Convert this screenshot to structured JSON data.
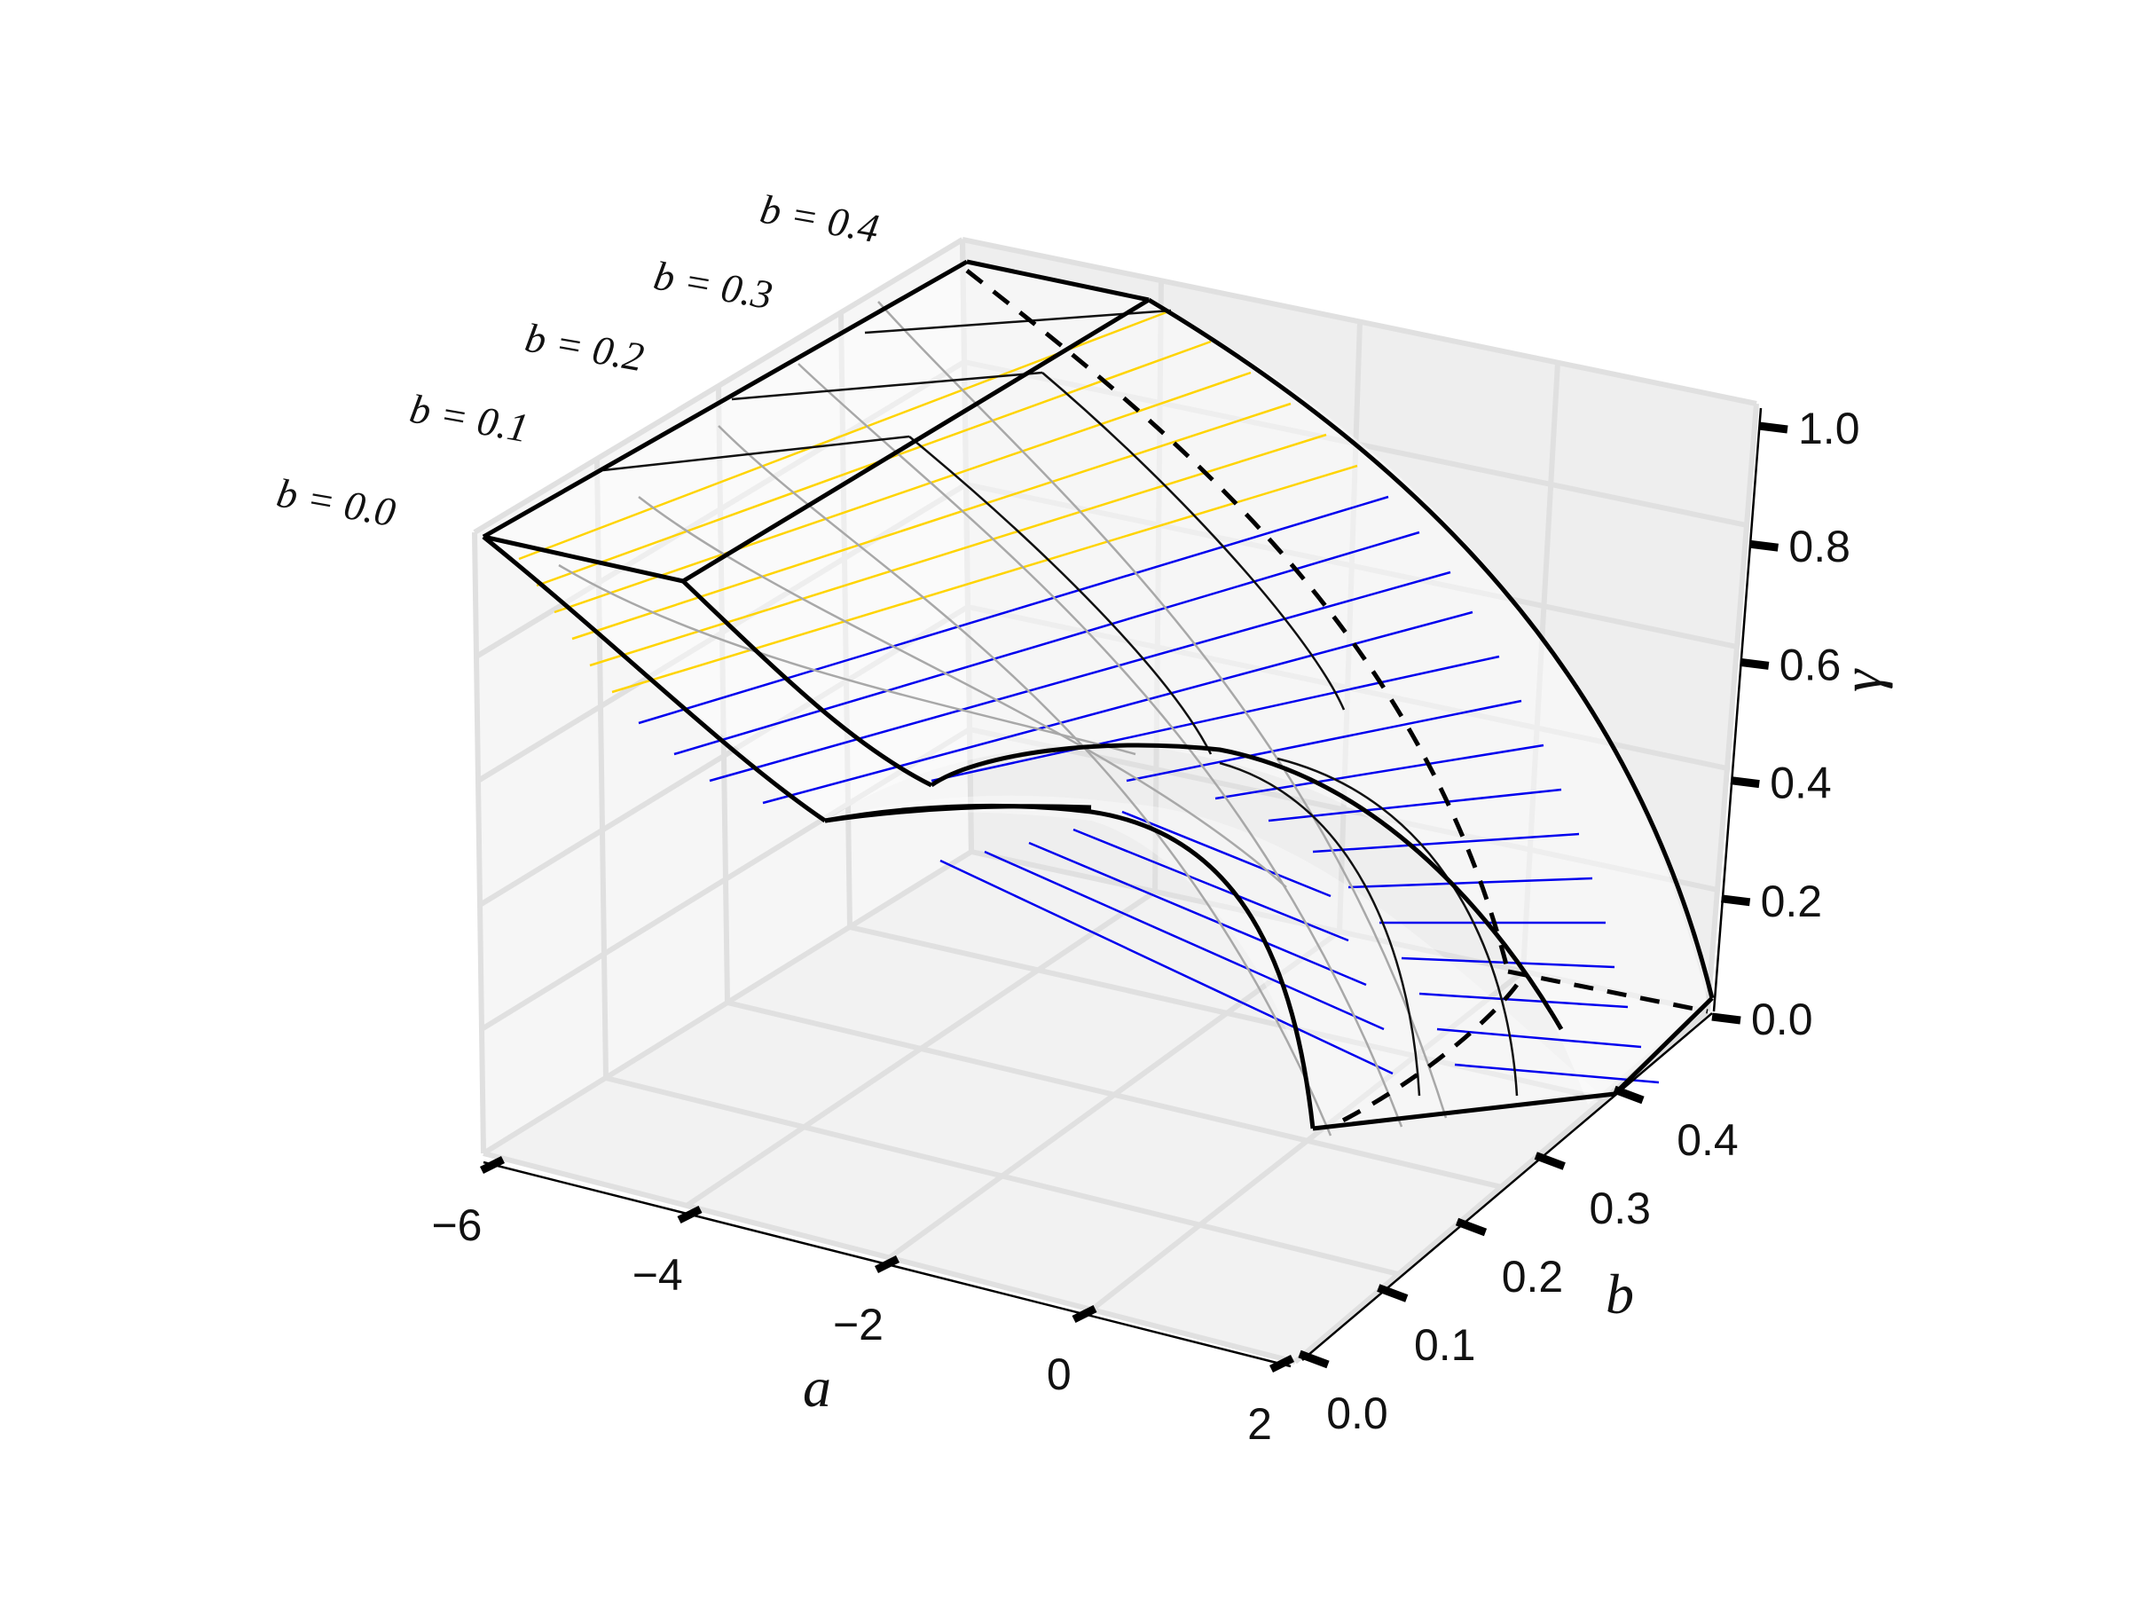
{
  "chart_data": {
    "type": "surface3d",
    "title": "",
    "xlabel": "a",
    "ylabel": "b",
    "zlabel": "γ",
    "xlim": [
      -6,
      2
    ],
    "ylim": [
      0.0,
      0.4
    ],
    "zlim": [
      0.0,
      1.0
    ],
    "x_ticks": [
      -6,
      -4,
      -2,
      0,
      2
    ],
    "x_tick_labels": [
      "−6",
      "−4",
      "−2",
      "0",
      "2"
    ],
    "y_ticks": [
      0.0,
      0.1,
      0.2,
      0.3,
      0.4
    ],
    "y_tick_labels": [
      "0.0",
      "0.1",
      "0.2",
      "0.3",
      "0.4"
    ],
    "z_ticks": [
      0.0,
      0.2,
      0.4,
      0.6,
      0.8,
      1.0
    ],
    "z_tick_labels": [
      "0.0",
      "0.2",
      "0.4",
      "0.6",
      "0.8",
      "1.0"
    ],
    "grid": true,
    "b_curve_labels": [
      "b = 0.0",
      "b = 0.1",
      "b = 0.2",
      "b = 0.3",
      "b = 0.4"
    ],
    "surface_colors": {
      "upper": "#ffd400",
      "lower": "#0000ee",
      "mesh": "#a8a8a8",
      "edge": "#000000"
    }
  }
}
